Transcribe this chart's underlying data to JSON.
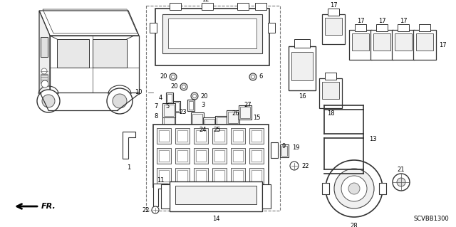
{
  "bg_color": "#ffffff",
  "text_color": "#000000",
  "diagram_code": "SCVBB1300",
  "fr_label": "FR.",
  "lc": "#333333",
  "figsize": [
    6.4,
    3.19
  ],
  "dpi": 100
}
